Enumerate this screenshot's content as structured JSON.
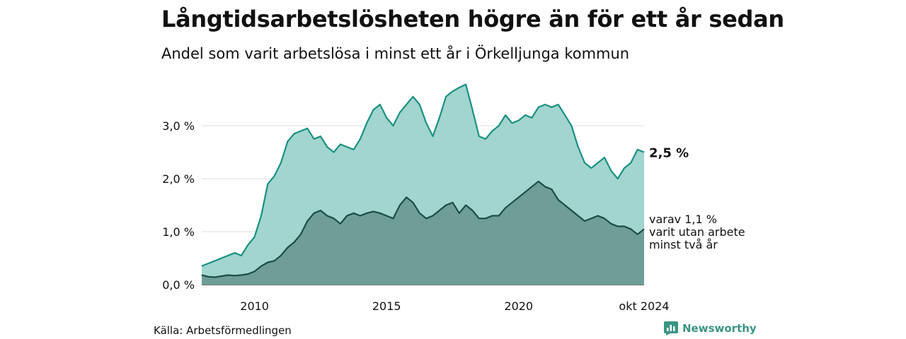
{
  "chart_data": {
    "type": "area",
    "title": "Långtidsarbetslösheten högre än för ett år sedan",
    "subtitle": "Andel som varit arbetslösa i minst ett år i Örkelljunga kommun",
    "ylim": [
      0,
      4.0
    ],
    "y_ticks": [
      {
        "value": 0,
        "label": "0,0 %"
      },
      {
        "value": 1,
        "label": "1,0 %"
      },
      {
        "value": 2,
        "label": "2,0 %"
      },
      {
        "value": 3,
        "label": "3,0 %"
      }
    ],
    "x_ticks": [
      {
        "value": "2010-01",
        "label": "2010"
      },
      {
        "value": "2015-01",
        "label": "2015"
      },
      {
        "value": "2020-01",
        "label": "2020"
      },
      {
        "value": "2024-10",
        "label": "okt 2024"
      }
    ],
    "grid": true,
    "legend": "none",
    "colors": {
      "total": "#1a9080",
      "total_fill": "#a2d5cf",
      "sub": "#1b4d48",
      "sub_fill": "#6e9e97"
    },
    "series": [
      {
        "key": "total",
        "end_label": "2,5 %",
        "points": [
          [
            "2008-01",
            0.35
          ],
          [
            "2008-04",
            0.4
          ],
          [
            "2008-07",
            0.45
          ],
          [
            "2008-10",
            0.5
          ],
          [
            "2009-01",
            0.55
          ],
          [
            "2009-04",
            0.6
          ],
          [
            "2009-07",
            0.55
          ],
          [
            "2009-10",
            0.75
          ],
          [
            "2010-01",
            0.9
          ],
          [
            "2010-04",
            1.3
          ],
          [
            "2010-07",
            1.9
          ],
          [
            "2010-10",
            2.05
          ],
          [
            "2011-01",
            2.3
          ],
          [
            "2011-04",
            2.7
          ],
          [
            "2011-07",
            2.85
          ],
          [
            "2011-10",
            2.9
          ],
          [
            "2012-01",
            2.95
          ],
          [
            "2012-04",
            2.75
          ],
          [
            "2012-07",
            2.8
          ],
          [
            "2012-10",
            2.6
          ],
          [
            "2013-01",
            2.5
          ],
          [
            "2013-04",
            2.65
          ],
          [
            "2013-07",
            2.6
          ],
          [
            "2013-10",
            2.55
          ],
          [
            "2014-01",
            2.75
          ],
          [
            "2014-04",
            3.05
          ],
          [
            "2014-07",
            3.3
          ],
          [
            "2014-10",
            3.4
          ],
          [
            "2015-01",
            3.15
          ],
          [
            "2015-04",
            3.0
          ],
          [
            "2015-07",
            3.25
          ],
          [
            "2015-10",
            3.4
          ],
          [
            "2016-01",
            3.55
          ],
          [
            "2016-04",
            3.4
          ],
          [
            "2016-07",
            3.05
          ],
          [
            "2016-10",
            2.8
          ],
          [
            "2017-01",
            3.15
          ],
          [
            "2017-04",
            3.55
          ],
          [
            "2017-07",
            3.65
          ],
          [
            "2017-10",
            3.72
          ],
          [
            "2018-01",
            3.78
          ],
          [
            "2018-04",
            3.3
          ],
          [
            "2018-07",
            2.8
          ],
          [
            "2018-10",
            2.75
          ],
          [
            "2019-01",
            2.9
          ],
          [
            "2019-04",
            3.0
          ],
          [
            "2019-07",
            3.2
          ],
          [
            "2019-10",
            3.05
          ],
          [
            "2020-01",
            3.1
          ],
          [
            "2020-04",
            3.2
          ],
          [
            "2020-07",
            3.15
          ],
          [
            "2020-10",
            3.35
          ],
          [
            "2021-01",
            3.4
          ],
          [
            "2021-04",
            3.35
          ],
          [
            "2021-07",
            3.4
          ],
          [
            "2021-10",
            3.2
          ],
          [
            "2022-01",
            3.0
          ],
          [
            "2022-04",
            2.6
          ],
          [
            "2022-07",
            2.3
          ],
          [
            "2022-10",
            2.2
          ],
          [
            "2023-01",
            2.3
          ],
          [
            "2023-04",
            2.4
          ],
          [
            "2023-07",
            2.15
          ],
          [
            "2023-10",
            2.0
          ],
          [
            "2024-01",
            2.2
          ],
          [
            "2024-04",
            2.3
          ],
          [
            "2024-07",
            2.55
          ],
          [
            "2024-10",
            2.5
          ]
        ]
      },
      {
        "key": "sub",
        "end_label": [
          "varav 1,1 %",
          "varit utan arbete",
          "minst två år"
        ],
        "points": [
          [
            "2008-01",
            0.18
          ],
          [
            "2008-04",
            0.15
          ],
          [
            "2008-07",
            0.14
          ],
          [
            "2008-10",
            0.16
          ],
          [
            "2009-01",
            0.18
          ],
          [
            "2009-04",
            0.17
          ],
          [
            "2009-07",
            0.18
          ],
          [
            "2009-10",
            0.2
          ],
          [
            "2010-01",
            0.25
          ],
          [
            "2010-04",
            0.35
          ],
          [
            "2010-07",
            0.42
          ],
          [
            "2010-10",
            0.45
          ],
          [
            "2011-01",
            0.55
          ],
          [
            "2011-04",
            0.7
          ],
          [
            "2011-07",
            0.8
          ],
          [
            "2011-10",
            0.95
          ],
          [
            "2012-01",
            1.2
          ],
          [
            "2012-04",
            1.35
          ],
          [
            "2012-07",
            1.4
          ],
          [
            "2012-10",
            1.3
          ],
          [
            "2013-01",
            1.25
          ],
          [
            "2013-04",
            1.15
          ],
          [
            "2013-07",
            1.3
          ],
          [
            "2013-10",
            1.35
          ],
          [
            "2014-01",
            1.3
          ],
          [
            "2014-04",
            1.35
          ],
          [
            "2014-07",
            1.38
          ],
          [
            "2014-10",
            1.35
          ],
          [
            "2015-01",
            1.3
          ],
          [
            "2015-04",
            1.25
          ],
          [
            "2015-07",
            1.5
          ],
          [
            "2015-10",
            1.65
          ],
          [
            "2016-01",
            1.55
          ],
          [
            "2016-04",
            1.35
          ],
          [
            "2016-07",
            1.25
          ],
          [
            "2016-10",
            1.3
          ],
          [
            "2017-01",
            1.4
          ],
          [
            "2017-04",
            1.5
          ],
          [
            "2017-07",
            1.55
          ],
          [
            "2017-10",
            1.35
          ],
          [
            "2018-01",
            1.5
          ],
          [
            "2018-04",
            1.4
          ],
          [
            "2018-07",
            1.25
          ],
          [
            "2018-10",
            1.25
          ],
          [
            "2019-01",
            1.3
          ],
          [
            "2019-04",
            1.3
          ],
          [
            "2019-07",
            1.45
          ],
          [
            "2019-10",
            1.55
          ],
          [
            "2020-01",
            1.65
          ],
          [
            "2020-04",
            1.75
          ],
          [
            "2020-07",
            1.85
          ],
          [
            "2020-10",
            1.95
          ],
          [
            "2021-01",
            1.85
          ],
          [
            "2021-04",
            1.8
          ],
          [
            "2021-07",
            1.6
          ],
          [
            "2021-10",
            1.5
          ],
          [
            "2022-01",
            1.4
          ],
          [
            "2022-04",
            1.3
          ],
          [
            "2022-07",
            1.2
          ],
          [
            "2022-10",
            1.25
          ],
          [
            "2023-01",
            1.3
          ],
          [
            "2023-04",
            1.25
          ],
          [
            "2023-07",
            1.15
          ],
          [
            "2023-10",
            1.1
          ],
          [
            "2024-01",
            1.1
          ],
          [
            "2024-04",
            1.05
          ],
          [
            "2024-07",
            0.95
          ],
          [
            "2024-10",
            1.05
          ]
        ]
      }
    ]
  },
  "source": "Källa: Arbetsförmedlingen",
  "brand": {
    "name": "Newsworthy",
    "icon": "newsworthy-logo-icon"
  }
}
